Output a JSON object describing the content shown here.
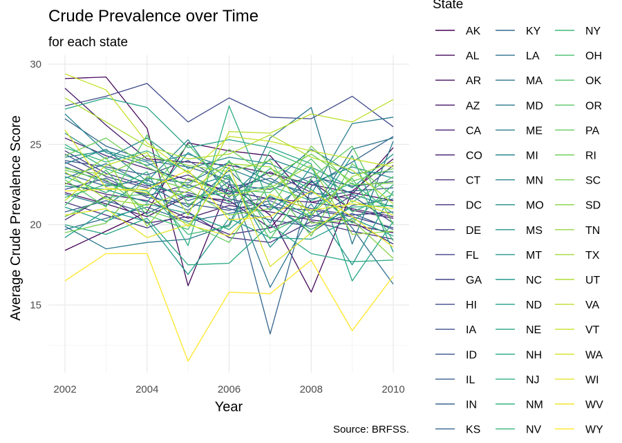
{
  "chart_data": {
    "type": "line",
    "title": "Crude Prevalence over Time",
    "subtitle": "for each state",
    "xlabel": "Year",
    "ylabel": "Average Crude Prevalence Score",
    "caption": "Source: BRFSS.",
    "legend_title": "State",
    "legend_position": "right",
    "grid": true,
    "xlim": [
      2002,
      2010
    ],
    "ylim": [
      11.0,
      30.0
    ],
    "x_ticks": [
      2002,
      2004,
      2006,
      2008,
      2010
    ],
    "y_ticks": [
      15,
      20,
      25,
      30
    ],
    "x": [
      2002,
      2003,
      2004,
      2005,
      2006,
      2007,
      2008,
      2009,
      2010
    ],
    "series": [
      {
        "name": "AK",
        "values": [
          18.4,
          19.6,
          20.8,
          25.1,
          24.6,
          24.3,
          21.4,
          21.9,
          24.8
        ]
      },
      {
        "name": "AL",
        "values": [
          29.1,
          29.2,
          26.0,
          16.2,
          22.5,
          20.6,
          15.8,
          22.1,
          24.1
        ]
      },
      {
        "name": "AR",
        "values": [
          22.0,
          21.3,
          20.5,
          21.8,
          21.5,
          19.8,
          22.7,
          20.9,
          20.4
        ]
      },
      {
        "name": "AZ",
        "values": [
          28.5,
          26.2,
          24.1,
          23.9,
          23.7,
          23.2,
          22.5,
          22.0,
          21.5
        ]
      },
      {
        "name": "CA",
        "values": [
          22.6,
          21.9,
          21.5,
          20.4,
          21.2,
          20.8,
          20.3,
          20.0,
          19.5
        ]
      },
      {
        "name": "CO",
        "values": [
          25.4,
          24.3,
          23.5,
          22.8,
          22.1,
          21.6,
          21.4,
          21.0,
          20.5
        ]
      },
      {
        "name": "CT",
        "values": [
          20.3,
          21.8,
          20.1,
          20.5,
          19.4,
          19.8,
          20.6,
          20.2,
          18.8
        ]
      },
      {
        "name": "DC",
        "values": [
          21.4,
          20.6,
          19.8,
          20.8,
          19.2,
          18.9,
          20.2,
          19.6,
          19.1
        ]
      },
      {
        "name": "DE",
        "values": [
          24.6,
          23.2,
          22.4,
          23.1,
          21.9,
          23.3,
          22.0,
          21.6,
          23.7
        ]
      },
      {
        "name": "FL",
        "values": [
          23.9,
          22.7,
          21.8,
          22.5,
          21.6,
          21.1,
          20.9,
          20.5,
          19.8
        ]
      },
      {
        "name": "GA",
        "values": [
          24.4,
          23.0,
          22.3,
          22.0,
          21.3,
          21.7,
          21.0,
          20.6,
          20.8
        ]
      },
      {
        "name": "HI",
        "values": [
          27.4,
          28.0,
          28.8,
          26.4,
          27.9,
          26.7,
          26.6,
          28.0,
          26.1
        ]
      },
      {
        "name": "IA",
        "values": [
          22.2,
          22.9,
          21.7,
          21.3,
          20.9,
          21.5,
          20.4,
          21.8,
          20.1
        ]
      },
      {
        "name": "ID",
        "values": [
          24.0,
          23.6,
          23.1,
          24.0,
          22.5,
          22.2,
          23.0,
          22.4,
          22.7
        ]
      },
      {
        "name": "IL",
        "values": [
          20.8,
          21.5,
          20.7,
          21.9,
          21.0,
          20.3,
          19.9,
          20.7,
          19.7
        ]
      },
      {
        "name": "IN",
        "values": [
          23.2,
          22.4,
          22.8,
          21.5,
          22.3,
          22.9,
          21.6,
          22.1,
          22.3
        ]
      },
      {
        "name": "KS",
        "values": [
          26.6,
          24.9,
          24.0,
          23.6,
          22.8,
          13.2,
          22.4,
          23.9,
          25.5
        ]
      },
      {
        "name": "KY",
        "values": [
          19.7,
          20.4,
          21.1,
          20.2,
          20.7,
          21.3,
          19.5,
          21.2,
          21.6
        ]
      },
      {
        "name": "LA",
        "values": [
          22.9,
          23.8,
          22.5,
          21.1,
          23.4,
          20.9,
          22.8,
          19.8,
          16.3
        ]
      },
      {
        "name": "MA",
        "values": [
          23.6,
          22.6,
          21.9,
          20.9,
          22.7,
          16.1,
          20.7,
          24.7,
          25.4
        ]
      },
      {
        "name": "MD",
        "values": [
          19.9,
          18.5,
          18.9,
          19.1,
          20.0,
          25.4,
          27.3,
          18.8,
          25.2
        ]
      },
      {
        "name": "ME",
        "values": [
          21.9,
          21.2,
          22.9,
          22.6,
          23.9,
          22.7,
          21.9,
          26.3,
          26.7
        ]
      },
      {
        "name": "MI",
        "values": [
          26.9,
          24.5,
          23.7,
          24.4,
          23.5,
          22.5,
          24.7,
          23.2,
          23.3
        ]
      },
      {
        "name": "MN",
        "values": [
          23.8,
          24.7,
          22.7,
          25.3,
          21.7,
          24.1,
          23.2,
          21.9,
          21.1
        ]
      },
      {
        "name": "MO",
        "values": [
          25.7,
          24.1,
          25.4,
          23.5,
          24.2,
          23.8,
          22.6,
          23.6,
          22.9
        ]
      },
      {
        "name": "MS",
        "values": [
          24.2,
          24.6,
          23.9,
          22.3,
          23.1,
          18.6,
          21.3,
          17.5,
          22.1
        ]
      },
      {
        "name": "MT",
        "values": [
          22.4,
          22.2,
          21.4,
          24.5,
          22.9,
          20.1,
          23.6,
          22.3,
          24.4
        ]
      },
      {
        "name": "NC",
        "values": [
          19.2,
          20.9,
          20.2,
          16.9,
          20.4,
          19.2,
          19.1,
          20.4,
          19.3
        ]
      },
      {
        "name": "ND",
        "values": [
          21.1,
          20.2,
          21.3,
          20.7,
          19.7,
          21.8,
          20.5,
          24.3,
          18.3
        ]
      },
      {
        "name": "NE",
        "values": [
          27.2,
          27.9,
          27.3,
          24.8,
          25.3,
          24.8,
          23.8,
          16.5,
          20.2
        ]
      },
      {
        "name": "NH",
        "values": [
          20.0,
          19.4,
          20.4,
          17.5,
          17.6,
          20.0,
          18.2,
          17.7,
          17.8
        ]
      },
      {
        "name": "NJ",
        "values": [
          23.0,
          22.0,
          23.3,
          18.7,
          27.4,
          21.2,
          19.7,
          21.1,
          21.2
        ]
      },
      {
        "name": "NM",
        "values": [
          25.0,
          23.5,
          22.6,
          21.7,
          22.0,
          22.4,
          21.5,
          22.6,
          20.7
        ]
      },
      {
        "name": "NV",
        "values": [
          24.8,
          23.9,
          24.6,
          23.3,
          21.4,
          23.5,
          22.2,
          20.1,
          22.5
        ]
      },
      {
        "name": "NY",
        "values": [
          21.7,
          22.5,
          22.1,
          19.4,
          19.9,
          24.6,
          23.5,
          20.8,
          21.9
        ]
      },
      {
        "name": "OH",
        "values": [
          21.2,
          23.4,
          20.6,
          19.7,
          24.0,
          19.5,
          20.8,
          22.9,
          19.0
        ]
      },
      {
        "name": "OK",
        "values": [
          20.5,
          21.7,
          21.9,
          25.0,
          22.2,
          22.0,
          24.1,
          21.4,
          23.0
        ]
      },
      {
        "name": "OR",
        "values": [
          22.8,
          21.1,
          25.6,
          21.2,
          23.0,
          19.1,
          22.9,
          24.9,
          20.0
        ]
      },
      {
        "name": "PA",
        "values": [
          23.4,
          22.8,
          20.9,
          20.1,
          18.9,
          22.6,
          19.3,
          23.8,
          21.8
        ]
      },
      {
        "name": "RI",
        "values": [
          24.3,
          25.4,
          23.6,
          22.4,
          24.7,
          23.0,
          24.4,
          22.7,
          23.5
        ]
      },
      {
        "name": "SC",
        "values": [
          19.5,
          20.1,
          23.0,
          22.2,
          20.6,
          21.0,
          24.9,
          22.5,
          22.6
        ]
      },
      {
        "name": "SD",
        "values": [
          23.5,
          23.1,
          24.3,
          23.7,
          23.3,
          24.0,
          20.1,
          20.3,
          17.9
        ]
      },
      {
        "name": "TN",
        "values": [
          22.5,
          24.2,
          19.9,
          22.9,
          21.8,
          22.3,
          23.7,
          19.4,
          19.6
        ]
      },
      {
        "name": "TX",
        "values": [
          23.3,
          21.6,
          21.2,
          22.1,
          23.8,
          23.6,
          20.6,
          23.0,
          23.9
        ]
      },
      {
        "name": "UT",
        "values": [
          27.9,
          26.4,
          24.9,
          24.1,
          24.4,
          25.6,
          24.2,
          23.4,
          21.3
        ]
      },
      {
        "name": "VA",
        "values": [
          21.5,
          23.7,
          24.5,
          20.6,
          25.8,
          25.7,
          26.9,
          26.4,
          27.8
        ]
      },
      {
        "name": "VT",
        "values": [
          29.4,
          28.4,
          25.1,
          23.2,
          25.5,
          25.2,
          24.6,
          24.1,
          23.6
        ]
      },
      {
        "name": "WA",
        "values": [
          25.9,
          22.3,
          22.0,
          19.9,
          23.6,
          17.4,
          19.5,
          21.5,
          20.6
        ]
      },
      {
        "name": "WI",
        "values": [
          20.6,
          21.0,
          19.2,
          20.0,
          19.3,
          21.9,
          20.9,
          21.3,
          21.0
        ]
      },
      {
        "name": "WV",
        "values": [
          22.1,
          22.2,
          22.2,
          23.4,
          20.3,
          20.5,
          22.1,
          20.5,
          18.6
        ]
      },
      {
        "name": "WY",
        "values": [
          16.5,
          18.2,
          18.2,
          11.5,
          15.8,
          15.7,
          17.8,
          13.4,
          16.8
        ]
      }
    ]
  }
}
